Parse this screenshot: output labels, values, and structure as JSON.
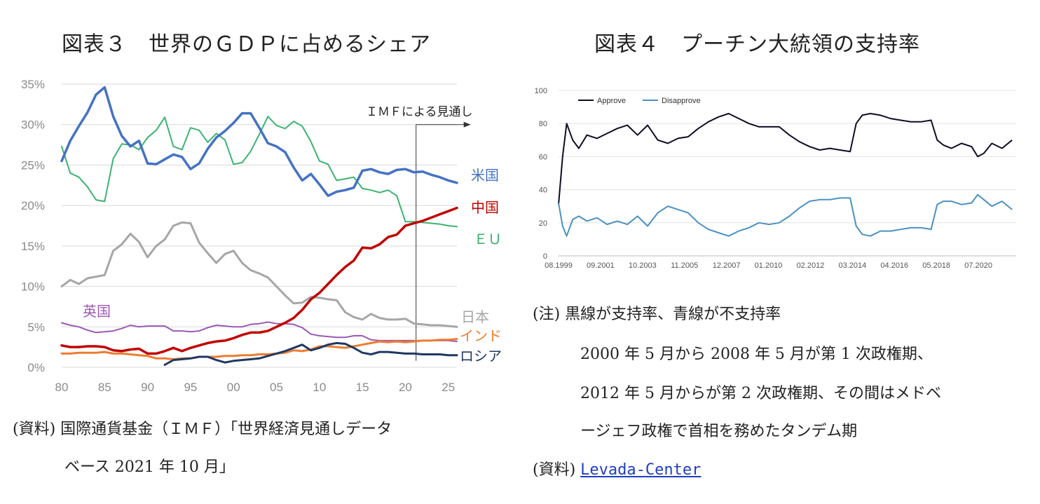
{
  "chart3": {
    "title": "図表３　世界のＧＤＰに占めるシェア",
    "annotation": "ＩＭＦによる見通し",
    "source_label": "(資料)",
    "source_line1": "国際通貨基金（ＩＭＦ）「世界経済見通しデータ",
    "source_line2": "ベース 2021 年 10 月」"
  },
  "chart4": {
    "title": "図表４　プーチン大統領の支持率",
    "note_label": "(注)",
    "note_line1": "黒線が支持率、青線が不支持率",
    "note_line2": "2000 年 5 月から 2008 年 5 月が第 1 次政権期、",
    "note_line3": "2012 年 5 月からが第 2 次政権期、その間はメドベ",
    "note_line4": "ージェフ政権で首相を務めたタンデム期",
    "source_label": "(資料)",
    "source_link": "Levada-Center"
  },
  "chart_data": [
    {
      "type": "line",
      "title": "世界のＧＤＰに占めるシェア",
      "x_ticks": [
        "80",
        "85",
        "90",
        "95",
        "00",
        "05",
        "10",
        "15",
        "20",
        "25"
      ],
      "y_ticks": [
        "0%",
        "5%",
        "10%",
        "15%",
        "20%",
        "25%",
        "30%",
        "35%"
      ],
      "ylim": [
        0,
        35
      ],
      "xlim": [
        1980,
        2026
      ],
      "projection_start": 2021,
      "grid": true,
      "series": [
        {
          "name": "米国",
          "color": "#4472c4",
          "x": [
            1980,
            1981,
            1982,
            1983,
            1984,
            1985,
            1986,
            1987,
            1988,
            1989,
            1990,
            1991,
            1992,
            1993,
            1994,
            1995,
            1996,
            1997,
            1998,
            1999,
            2000,
            2001,
            2002,
            2003,
            2004,
            2005,
            2006,
            2007,
            2008,
            2009,
            2010,
            2011,
            2012,
            2013,
            2014,
            2015,
            2016,
            2017,
            2018,
            2019,
            2020,
            2021,
            2022,
            2023,
            2024,
            2025,
            2026
          ],
          "y": [
            25.5,
            28,
            29.8,
            31.5,
            33.7,
            34.6,
            31,
            28.6,
            27.3,
            28,
            25.2,
            25.1,
            25.7,
            26.3,
            26,
            24.5,
            25.2,
            27,
            28.4,
            29.2,
            30.2,
            31.4,
            31.4,
            29.6,
            27.7,
            27.3,
            26.6,
            24.7,
            23.1,
            23.9,
            22.6,
            21.2,
            21.7,
            21.9,
            22.2,
            24.3,
            24.5,
            24.1,
            23.9,
            24.4,
            24.5,
            24.1,
            24.2,
            23.8,
            23.5,
            23.1,
            22.8
          ]
        },
        {
          "name": "中国",
          "color": "#c00000",
          "x": [
            1980,
            1981,
            1982,
            1983,
            1984,
            1985,
            1986,
            1987,
            1988,
            1989,
            1990,
            1991,
            1992,
            1993,
            1994,
            1995,
            1996,
            1997,
            1998,
            1999,
            2000,
            2001,
            2002,
            2003,
            2004,
            2005,
            2006,
            2007,
            2008,
            2009,
            2010,
            2011,
            2012,
            2013,
            2014,
            2015,
            2016,
            2017,
            2018,
            2019,
            2020,
            2021,
            2022,
            2023,
            2024,
            2025,
            2026
          ],
          "y": [
            2.7,
            2.5,
            2.5,
            2.6,
            2.6,
            2.5,
            2.1,
            2,
            2.2,
            2.3,
            1.7,
            1.7,
            2,
            2.4,
            2,
            2.4,
            2.7,
            3,
            3.2,
            3.3,
            3.6,
            4,
            4.3,
            4.3,
            4.5,
            5,
            5.5,
            6.1,
            7.1,
            8.4,
            9.2,
            10.3,
            11.4,
            12.4,
            13.2,
            14.8,
            14.7,
            15.2,
            16.1,
            16.4,
            17.5,
            17.8,
            18.1,
            18.5,
            18.9,
            19.3,
            19.7
          ]
        },
        {
          "name": "ＥＵ",
          "color": "#3cb371",
          "x": [
            1980,
            1981,
            1982,
            1983,
            1984,
            1985,
            1986,
            1987,
            1988,
            1989,
            1990,
            1991,
            1992,
            1993,
            1994,
            1995,
            1996,
            1997,
            1998,
            1999,
            2000,
            2001,
            2002,
            2003,
            2004,
            2005,
            2006,
            2007,
            2008,
            2009,
            2010,
            2011,
            2012,
            2013,
            2014,
            2015,
            2016,
            2017,
            2018,
            2019,
            2020,
            2021,
            2022,
            2023,
            2024,
            2025,
            2026
          ],
          "y": [
            27.3,
            24,
            23.5,
            22.3,
            20.7,
            20.5,
            25.8,
            27.6,
            27.5,
            26.9,
            28.4,
            29.3,
            30.9,
            27.3,
            26.9,
            29.6,
            29.3,
            27.8,
            28.9,
            28.1,
            25.1,
            25.3,
            26.7,
            28.8,
            31,
            29.9,
            29.5,
            30.4,
            29.8,
            27.9,
            25.5,
            25.1,
            23.1,
            23.3,
            23.5,
            22.1,
            21.9,
            21.6,
            21.9,
            21.2,
            18,
            18,
            17.9,
            17.8,
            17.7,
            17.5,
            17.4
          ]
        },
        {
          "name": "日本",
          "color": "#a6a6a6",
          "x": [
            1980,
            1981,
            1982,
            1983,
            1984,
            1985,
            1986,
            1987,
            1988,
            1989,
            1990,
            1991,
            1992,
            1993,
            1994,
            1995,
            1996,
            1997,
            1998,
            1999,
            2000,
            2001,
            2002,
            2003,
            2004,
            2005,
            2006,
            2007,
            2008,
            2009,
            2010,
            2011,
            2012,
            2013,
            2014,
            2015,
            2016,
            2017,
            2018,
            2019,
            2020,
            2021,
            2022,
            2023,
            2024,
            2025,
            2026
          ],
          "y": [
            10,
            10.8,
            10.3,
            11,
            11.2,
            11.4,
            14.4,
            15.2,
            16.5,
            15.5,
            13.6,
            15,
            15.8,
            17.5,
            17.9,
            17.8,
            15.4,
            14.1,
            12.9,
            14,
            14.4,
            12.9,
            12,
            11.6,
            11.1,
            10,
            8.9,
            7.9,
            8,
            8.7,
            8.6,
            8.4,
            8.3,
            6.8,
            6.2,
            5.9,
            6.6,
            6.1,
            5.9,
            5.9,
            6,
            5.4,
            5.3,
            5.2,
            5.2,
            5.1,
            5
          ]
        },
        {
          "name": "英国",
          "color": "#9b59b6",
          "x": [
            1980,
            1981,
            1982,
            1983,
            1984,
            1985,
            1986,
            1987,
            1988,
            1989,
            1990,
            1991,
            1992,
            1993,
            1994,
            1995,
            1996,
            1997,
            1998,
            1999,
            2000,
            2001,
            2002,
            2003,
            2004,
            2005,
            2006,
            2007,
            2008,
            2009,
            2010,
            2011,
            2012,
            2013,
            2014,
            2015,
            2016,
            2017,
            2018,
            2019,
            2020,
            2021,
            2022,
            2023,
            2024,
            2025,
            2026
          ],
          "y": [
            5.5,
            5.2,
            5,
            4.6,
            4.3,
            4.4,
            4.5,
            4.8,
            5.2,
            5,
            5.1,
            5.1,
            5.1,
            4.5,
            4.5,
            4.4,
            4.5,
            4.9,
            5.2,
            5.1,
            5,
            5,
            5.3,
            5.4,
            5.6,
            5.4,
            5.4,
            5.3,
            4.9,
            4.1,
            3.9,
            3.8,
            3.7,
            3.7,
            3.9,
            3.9,
            3.4,
            3.3,
            3.3,
            3.3,
            3.3,
            3.3,
            3.3,
            3.3,
            3.3,
            3.3,
            3.2
          ]
        },
        {
          "name": "インド",
          "color": "#ed7d31",
          "x": [
            1980,
            1981,
            1982,
            1983,
            1984,
            1985,
            1986,
            1987,
            1988,
            1989,
            1990,
            1991,
            1992,
            1993,
            1994,
            1995,
            1996,
            1997,
            1998,
            1999,
            2000,
            2001,
            2002,
            2003,
            2004,
            2005,
            2006,
            2007,
            2008,
            2009,
            2010,
            2011,
            2012,
            2013,
            2014,
            2015,
            2016,
            2017,
            2018,
            2019,
            2020,
            2021,
            2022,
            2023,
            2024,
            2025,
            2026
          ],
          "y": [
            1.7,
            1.7,
            1.8,
            1.8,
            1.8,
            1.9,
            1.7,
            1.7,
            1.6,
            1.5,
            1.4,
            1.1,
            1.1,
            1,
            1.1,
            1.1,
            1.3,
            1.3,
            1.3,
            1.4,
            1.4,
            1.5,
            1.5,
            1.6,
            1.6,
            1.7,
            1.8,
            2.1,
            2,
            2.2,
            2.6,
            2.6,
            2.5,
            2.4,
            2.6,
            2.8,
            3,
            3.2,
            3.1,
            3.2,
            3.1,
            3.2,
            3.3,
            3.3,
            3.4,
            3.4,
            3.5
          ]
        },
        {
          "name": "ロシア",
          "color": "#1f3864",
          "x": [
            1992,
            1993,
            1994,
            1995,
            1996,
            1997,
            1998,
            1999,
            2000,
            2001,
            2002,
            2003,
            2004,
            2005,
            2006,
            2007,
            2008,
            2009,
            2010,
            2011,
            2012,
            2013,
            2014,
            2015,
            2016,
            2017,
            2018,
            2019,
            2020,
            2021,
            2022,
            2023,
            2024,
            2025,
            2026
          ],
          "y": [
            0.3,
            0.9,
            1,
            1.1,
            1.3,
            1.3,
            0.9,
            0.6,
            0.8,
            0.9,
            1,
            1.1,
            1.4,
            1.7,
            2,
            2.4,
            2.8,
            2.1,
            2.4,
            2.8,
            3,
            2.9,
            2.4,
            1.8,
            1.6,
            1.9,
            1.9,
            1.8,
            1.7,
            1.7,
            1.6,
            1.6,
            1.6,
            1.5,
            1.5
          ]
        }
      ]
    },
    {
      "type": "line",
      "title": "プーチン大統領の支持率",
      "x_ticks": [
        "08.1999",
        "09.2001",
        "10.2003",
        "11.2005",
        "12.2007",
        "01.2010",
        "02.2012",
        "03.2014",
        "04.2016",
        "05.2018",
        "07.2020"
      ],
      "y_ticks": [
        "0",
        "20",
        "40",
        "60",
        "80",
        "100"
      ],
      "ylim": [
        0,
        100
      ],
      "legend_position": "top-left",
      "grid": true,
      "series": [
        {
          "name": "Approve",
          "color": "#0d0d26",
          "x": [
            1999.6,
            1999.8,
            2000,
            2000.3,
            2000.6,
            2001,
            2001.5,
            2002,
            2002.5,
            2003,
            2003.5,
            2004,
            2004.5,
            2005,
            2005.5,
            2006,
            2006.5,
            2007,
            2007.5,
            2008,
            2008.5,
            2009,
            2009.5,
            2010,
            2010.5,
            2011,
            2011.5,
            2012,
            2012.5,
            2013,
            2013.5,
            2014,
            2014.3,
            2014.6,
            2015,
            2015.5,
            2016,
            2016.5,
            2017,
            2017.5,
            2018,
            2018.3,
            2018.6,
            2019,
            2019.5,
            2020,
            2020.3,
            2020.6,
            2021,
            2021.5,
            2022
          ],
          "y": [
            31,
            60,
            80,
            70,
            65,
            73,
            71,
            74,
            77,
            79,
            73,
            79,
            70,
            68,
            71,
            72,
            77,
            81,
            84,
            86,
            83,
            80,
            78,
            78,
            78,
            73,
            69,
            66,
            64,
            65,
            64,
            63,
            80,
            85,
            86,
            85,
            83,
            82,
            81,
            81,
            82,
            70,
            67,
            65,
            68,
            66,
            60,
            62,
            68,
            65,
            70
          ]
        },
        {
          "name": "Disapprove",
          "color": "#4a90c2",
          "x": [
            1999.6,
            1999.8,
            2000,
            2000.3,
            2000.6,
            2001,
            2001.5,
            2002,
            2002.5,
            2003,
            2003.5,
            2004,
            2004.5,
            2005,
            2005.5,
            2006,
            2006.5,
            2007,
            2007.5,
            2008,
            2008.5,
            2009,
            2009.5,
            2010,
            2010.5,
            2011,
            2011.5,
            2012,
            2012.5,
            2013,
            2013.5,
            2014,
            2014.3,
            2014.6,
            2015,
            2015.5,
            2016,
            2016.5,
            2017,
            2017.5,
            2018,
            2018.3,
            2018.6,
            2019,
            2019.5,
            2020,
            2020.3,
            2020.6,
            2021,
            2021.5,
            2022
          ],
          "y": [
            32,
            18,
            12,
            22,
            24,
            21,
            23,
            19,
            21,
            19,
            24,
            18,
            26,
            30,
            28,
            26,
            20,
            16,
            14,
            12,
            15,
            17,
            20,
            19,
            20,
            24,
            29,
            33,
            34,
            34,
            35,
            35,
            18,
            13,
            12,
            15,
            15,
            16,
            17,
            17,
            16,
            31,
            33,
            33,
            31,
            32,
            37,
            34,
            30,
            33,
            28
          ]
        }
      ]
    }
  ]
}
